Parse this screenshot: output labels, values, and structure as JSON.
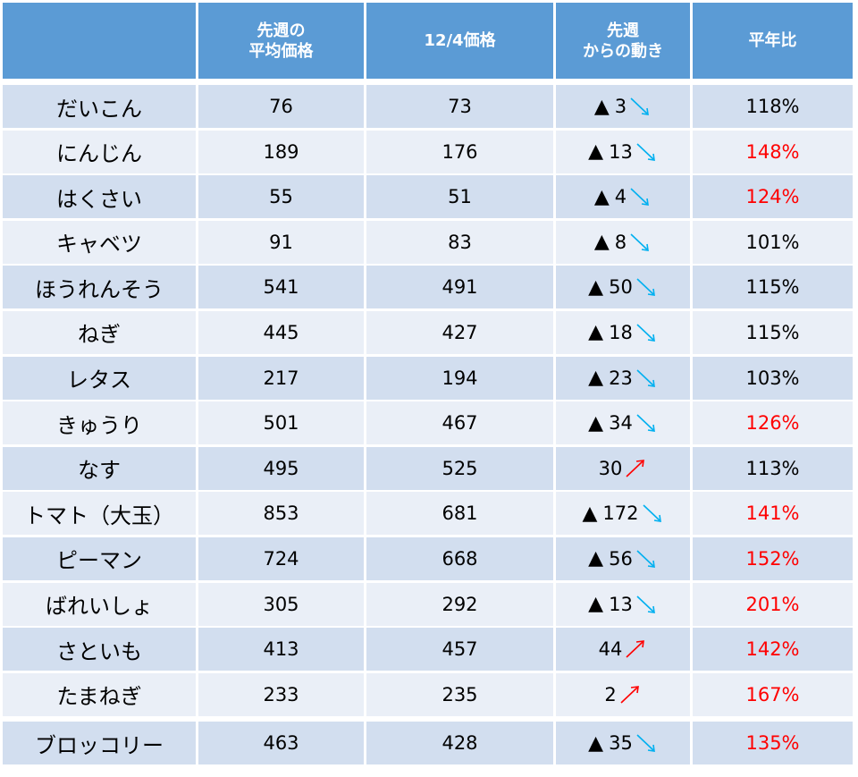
{
  "header": {
    "col0": "",
    "col1_line1": "先週の",
    "col1_line2": "平均価格",
    "col2": "12/4価格",
    "col3_line1": "先週",
    "col3_line2": "からの動き",
    "col4": "平年比"
  },
  "colors": {
    "header_bg": "#5B9BD5",
    "row_dark": "#D2DEEF",
    "row_light": "#EAEFF7",
    "down_arrow": "#00B0F0",
    "up_arrow": "#FF0000",
    "high_ratio": "#FF0000"
  },
  "rows": [
    {
      "name": "だいこん",
      "prev_avg": "76",
      "price_12_4": "73",
      "down": true,
      "change": "3",
      "ratio": "118%",
      "ratio_red": false
    },
    {
      "name": "にんじん",
      "prev_avg": "189",
      "price_12_4": "176",
      "down": true,
      "change": "13",
      "ratio": "148%",
      "ratio_red": true
    },
    {
      "name": "はくさい",
      "prev_avg": "55",
      "price_12_4": "51",
      "down": true,
      "change": "4",
      "ratio": "124%",
      "ratio_red": true
    },
    {
      "name": "キャベツ",
      "prev_avg": "91",
      "price_12_4": "83",
      "down": true,
      "change": "8",
      "ratio": "101%",
      "ratio_red": false
    },
    {
      "name": "ほうれんそう",
      "prev_avg": "541",
      "price_12_4": "491",
      "down": true,
      "change": "50",
      "ratio": "115%",
      "ratio_red": false
    },
    {
      "name": "ねぎ",
      "prev_avg": "445",
      "price_12_4": "427",
      "down": true,
      "change": "18",
      "ratio": "115%",
      "ratio_red": false
    },
    {
      "name": "レタス",
      "prev_avg": "217",
      "price_12_4": "194",
      "down": true,
      "change": "23",
      "ratio": "103%",
      "ratio_red": false
    },
    {
      "name": "きゅうり",
      "prev_avg": "501",
      "price_12_4": "467",
      "down": true,
      "change": "34",
      "ratio": "126%",
      "ratio_red": true
    },
    {
      "name": "なす",
      "prev_avg": "495",
      "price_12_4": "525",
      "down": false,
      "change": "30",
      "ratio": "113%",
      "ratio_red": false
    },
    {
      "name": "トマト（大玉）",
      "prev_avg": "853",
      "price_12_4": "681",
      "down": true,
      "change": "172",
      "ratio": "141%",
      "ratio_red": true
    },
    {
      "name": "ピーマン",
      "prev_avg": "724",
      "price_12_4": "668",
      "down": true,
      "change": "56",
      "ratio": "152%",
      "ratio_red": true
    },
    {
      "name": "ばれいしょ",
      "prev_avg": "305",
      "price_12_4": "292",
      "down": true,
      "change": "13",
      "ratio": "201%",
      "ratio_red": true
    },
    {
      "name": "さといも",
      "prev_avg": "413",
      "price_12_4": "457",
      "down": false,
      "change": "44",
      "ratio": "142%",
      "ratio_red": true
    },
    {
      "name": "たまねぎ",
      "prev_avg": "233",
      "price_12_4": "235",
      "down": false,
      "change": "2",
      "ratio": "167%",
      "ratio_red": true
    },
    {
      "name": "ブロッコリー",
      "prev_avg": "463",
      "price_12_4": "428",
      "down": true,
      "change": "35",
      "ratio": "135%",
      "ratio_red": true
    }
  ],
  "icons": {
    "decrease_marker": "▲",
    "down_arrow": "down-right-arrow",
    "up_arrow": "up-right-arrow"
  }
}
